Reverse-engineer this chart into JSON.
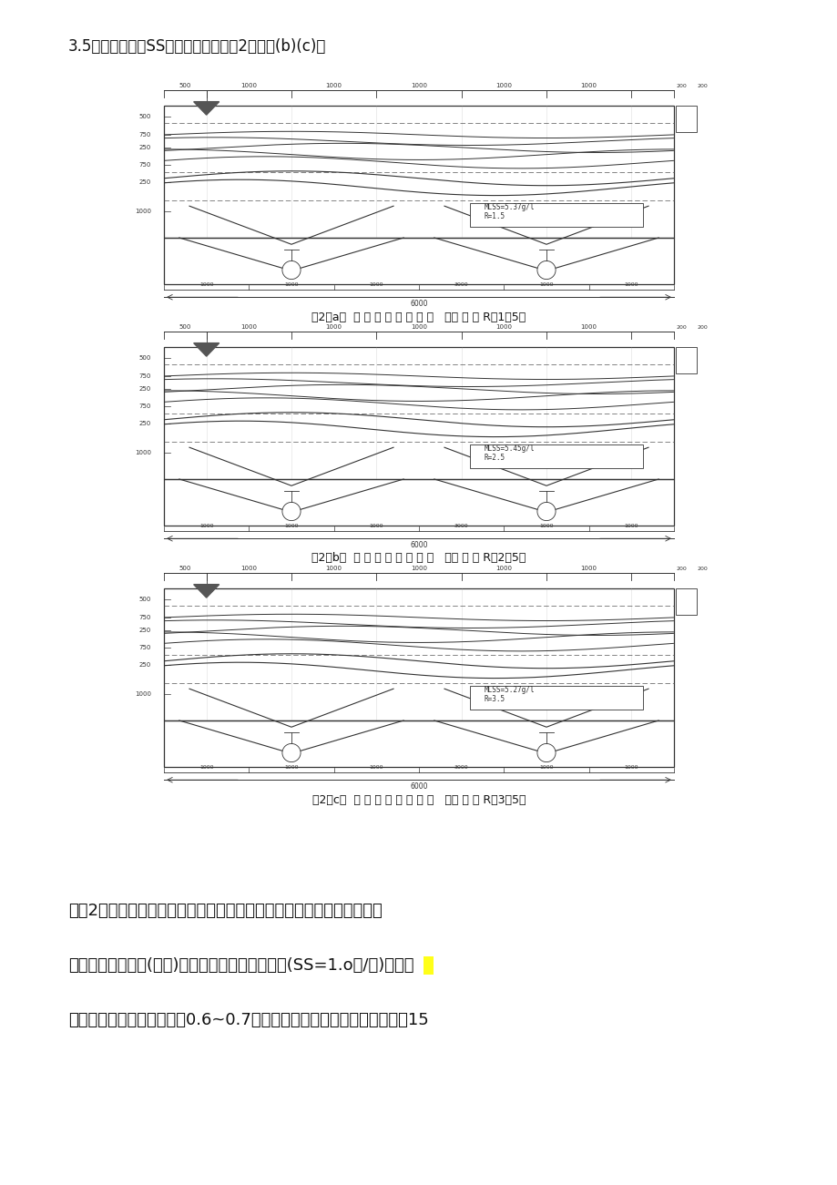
{
  "page_bg": "#ffffff",
  "top_text": "3.5时，二沉池内SS的等浓度曲线见图2（八）(b)(c)。",
  "fig_a_caption": "图2（a）  二 沉 池 污 泥 浓 度 场   （回 流 比 R＝1．5）",
  "fig_b_caption": "图2（b）  二 沉 池 污 泥 浓 度 场   （回 流 比 R＝2．5）",
  "fig_c_caption": "图2（c）  二 沉 池 污 泥 浓 度 场   （回 流 比 R＝3．5）",
  "label_a": "MLSS=5.37g/l\nR=1.5",
  "label_b": "MLSS=5.45g/l\nR=2.5",
  "label_c": "MLSS=5.27g/l\nR=3.5",
  "bottom_text1": "由图2可见，：沉池内的等浓度曲线，虽回流比不同，但都呈水平状态，",
  "bottom_text2": "说明二沉池属成层(拥挤)沉降状态。二沉池的泥面(SS=1.o克/升)在不同",
  "bottom_text3": "回流比条件下，均在水面下0.6~0.7米处，每种回流比均运行二次，每欤15"
}
